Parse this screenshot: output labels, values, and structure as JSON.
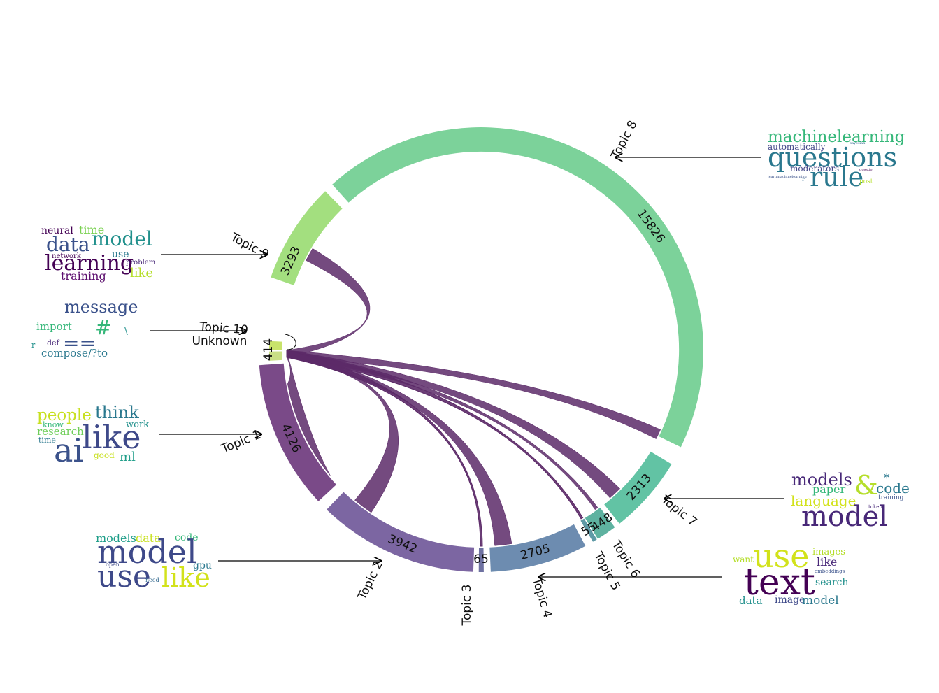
{
  "chart_data": {
    "type": "chord",
    "segments": [
      {
        "id": "topic-8",
        "label": "Topic 8",
        "count": "15826",
        "color": "#7cd29a"
      },
      {
        "id": "topic-9",
        "label": "Topic 9",
        "count": "3293",
        "color": "#a3df7f"
      },
      {
        "id": "topic-10",
        "label": "Topic 10",
        "count": "",
        "color": "#c8e36a"
      },
      {
        "id": "unknown",
        "label": "Unknown",
        "count": "414",
        "color": "#c9df85"
      },
      {
        "id": "topic-1",
        "label": "Topic 1",
        "count": "4126",
        "color": "#7a4a88"
      },
      {
        "id": "topic-2",
        "label": "Topic 2",
        "count": "3942",
        "color": "#7c66a2"
      },
      {
        "id": "topic-3",
        "label": "Topic 3",
        "count": "65",
        "color": "#6e71a1"
      },
      {
        "id": "topic-4",
        "label": "Topic 4",
        "count": "2705",
        "color": "#6d8cb0"
      },
      {
        "id": "topic-5",
        "label": "Topic 5",
        "count": "55",
        "color": "#5f9aa6"
      },
      {
        "id": "topic-6",
        "label": "Topic 6",
        "count": "448",
        "color": "#5eb2a0"
      },
      {
        "id": "topic-7",
        "label": "Topic 7",
        "count": "2313",
        "color": "#62c3a4"
      }
    ],
    "ribbon_color": "#5c2a68"
  },
  "wordclouds": {
    "topic_8": {
      "words": [
        "machinelearning",
        "automatically",
        "questions",
        "moderators",
        "rule",
        "post",
        "bayesian",
        "questio",
        "learnmachinelearning",
        "r"
      ]
    },
    "topic_9": {
      "words": [
        "neural",
        "time",
        "data",
        "model",
        "network",
        "use",
        "learning",
        "problem",
        "training",
        "like"
      ]
    },
    "topic_10": {
      "words": [
        "message",
        "import",
        "#",
        "\\",
        "r",
        "def",
        "==",
        "compose/?to"
      ]
    },
    "topic_1": {
      "words": [
        "people",
        "think",
        "know",
        "work",
        "research",
        "ai",
        "like",
        "time",
        "good",
        "ml"
      ]
    },
    "topic_2": {
      "words": [
        "models",
        "data",
        "code",
        "model",
        "open",
        "gpu",
        "use",
        "like",
        "need"
      ]
    },
    "topic_7": {
      "words": [
        "models",
        "&",
        "*",
        "paper",
        "code",
        "language",
        "tokens",
        "training",
        "model"
      ]
    },
    "topic_4": {
      "words": [
        "use",
        "images",
        "want",
        "like",
        "text",
        "embeddings",
        "search",
        "data",
        "image",
        "model"
      ]
    }
  }
}
